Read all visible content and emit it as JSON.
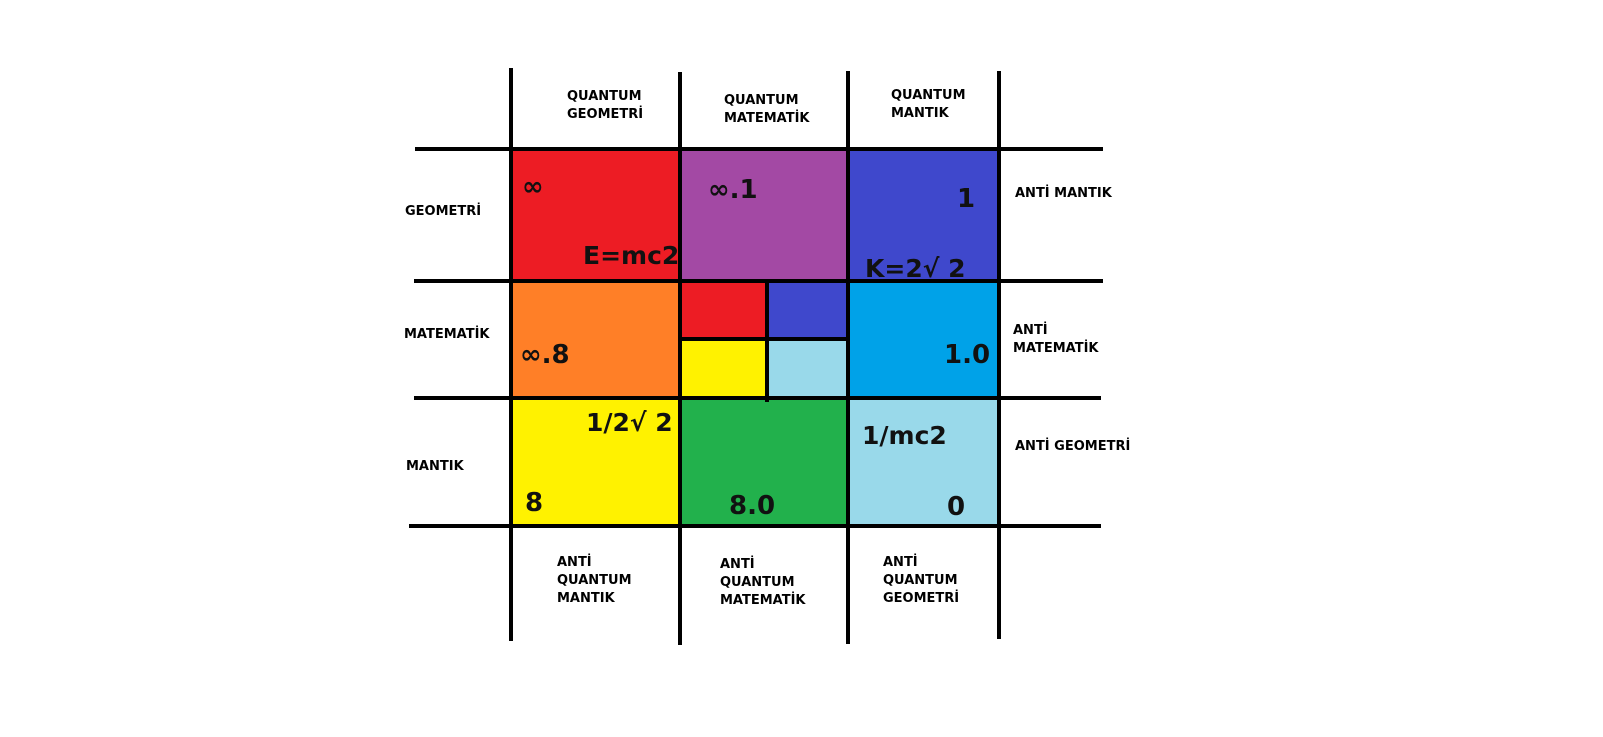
{
  "top_headers": [
    "QUANTUM\nGEOMETRİ",
    "QUANTUM\nMATEMATİK",
    "QUANTUM\nMANTIK"
  ],
  "left_headers": [
    "GEOMETRİ",
    "MATEMATİK",
    "MANTIK"
  ],
  "right_headers": [
    "ANTİ MANTIK",
    "ANTİ\nMATEMATİK",
    "ANTİ GEOMETRİ"
  ],
  "bottom_headers": [
    "ANTİ\nQUANTUM\nMANTIK",
    "ANTİ\nQUANTUM\nMATEMATİK",
    "ANTİ\nQUANTUM\nGEOMETRİ"
  ],
  "cells": {
    "r1c1": {
      "color": "#ed1c24",
      "labels": [
        "∞",
        "E=mc2"
      ]
    },
    "r1c2": {
      "color": "#a349a4",
      "labels": [
        "∞.1"
      ]
    },
    "r1c3": {
      "color": "#3f48cc",
      "labels": [
        "1",
        "K=2√ 2"
      ]
    },
    "r2c1": {
      "color": "#ff7f27",
      "labels": [
        "∞.8"
      ]
    },
    "r2c2": {
      "colors": [
        "#ed1c24",
        "#3f48cc",
        "#fff200",
        "#99d9ea"
      ]
    },
    "r2c3": {
      "color": "#00a2e8",
      "labels": [
        "1.0"
      ]
    },
    "r3c1": {
      "color": "#fff200",
      "labels": [
        "1/2√ 2",
        "8"
      ]
    },
    "r3c2": {
      "color": "#22b14c",
      "labels": [
        "8.0"
      ]
    },
    "r3c3": {
      "color": "#99d9ea",
      "labels": [
        "1/mc2",
        "0"
      ]
    }
  }
}
